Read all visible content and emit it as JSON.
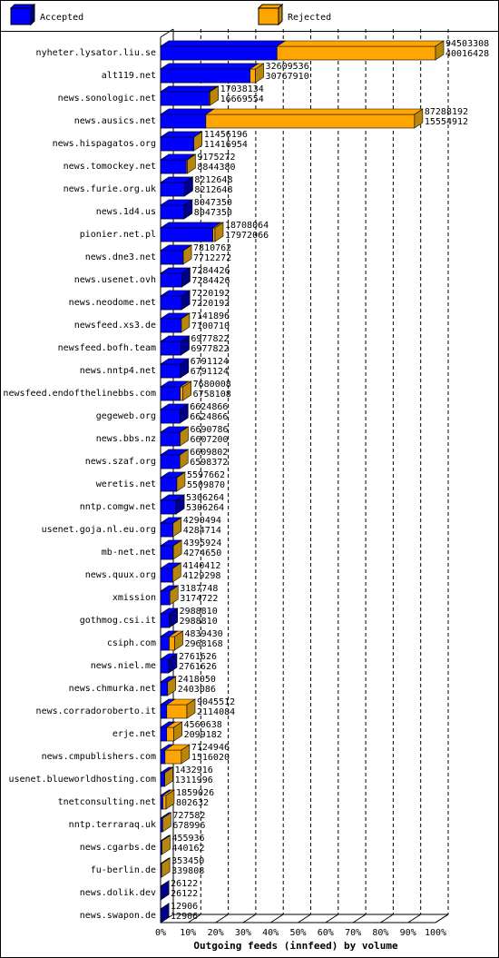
{
  "chart_data": {
    "type": "bar",
    "orientation": "horizontal",
    "stacked": false,
    "xlabel": "Outgoing feeds (innfeed) by volume",
    "categories": [
      "nyheter.lysator.liu.se",
      "alt119.net",
      "news.sonologic.net",
      "news.ausics.net",
      "news.hispagatos.org",
      "news.tomockey.net",
      "news.furie.org.uk",
      "news.1d4.us",
      "pionier.net.pl",
      "news.dne3.net",
      "news.usenet.ovh",
      "news.neodome.net",
      "newsfeed.xs3.de",
      "newsfeed.bofh.team",
      "news.nntp4.net",
      "newsfeed.endofthelinebbs.com",
      "gegeweb.org",
      "news.bbs.nz",
      "news.szaf.org",
      "weretis.net",
      "nntp.comgw.net",
      "usenet.goja.nl.eu.org",
      "mb-net.net",
      "news.quux.org",
      "xmission",
      "gothmog.csi.it",
      "csiph.com",
      "news.niel.me",
      "news.chmurka.net",
      "news.corradoroberto.it",
      "erje.net",
      "news.cmpublishers.com",
      "usenet.blueworldhosting.com",
      "tnetconsulting.net",
      "nntp.terraraq.uk",
      "news.cgarbs.de",
      "fu-berlin.de",
      "news.dolik.dev",
      "news.swapon.de"
    ],
    "series": [
      {
        "name": "Accepted",
        "color": "#0000ff",
        "side_color": "#00008b",
        "values": [
          40016428,
          30767910,
          16669554,
          15554912,
          11416954,
          8844380,
          8212648,
          8047350,
          17972066,
          7712272,
          7284426,
          7220192,
          7100710,
          6977822,
          6791124,
          6758108,
          6624866,
          6607200,
          6598372,
          5509870,
          5306264,
          4284714,
          4274650,
          4129298,
          3174722,
          2988810,
          2968168,
          2761626,
          2403086,
          2114084,
          2099182,
          1516020,
          1311996,
          802632,
          678996,
          440162,
          339808,
          26122,
          12906
        ]
      },
      {
        "name": "Rejected",
        "color": "#ffa500",
        "side_color": "#b8860b",
        "values": [
          94503308,
          32609536,
          17038134,
          87288192,
          11456196,
          9175272,
          8212648,
          8047350,
          18708064,
          7810762,
          7284426,
          7220192,
          7141896,
          6977822,
          6791124,
          7680008,
          6624866,
          6690786,
          6609802,
          5597662,
          5306264,
          4290494,
          4395924,
          4140412,
          3187748,
          2988810,
          4839430,
          2761626,
          2418050,
          9045512,
          4560638,
          7124946,
          1432916,
          1859026,
          727582,
          455936,
          353450,
          26122,
          12906
        ]
      }
    ],
    "xlim": [
      0,
      94503308
    ],
    "xticks": [
      {
        "value": 0,
        "label": "0%"
      },
      {
        "value": 9450330.8,
        "label": "10%"
      },
      {
        "value": 18900661.6,
        "label": "20%"
      },
      {
        "value": 28350992.4,
        "label": "30%"
      },
      {
        "value": 37801323.2,
        "label": "40%"
      },
      {
        "value": 47251654,
        "label": "50%"
      },
      {
        "value": 56701984.8,
        "label": "60%"
      },
      {
        "value": 66152315.6,
        "label": "70%"
      },
      {
        "value": 75602646.4,
        "label": "80%"
      },
      {
        "value": 85052977.2,
        "label": "90%"
      },
      {
        "value": 94503308,
        "label": "100%"
      }
    ],
    "grid": true
  }
}
